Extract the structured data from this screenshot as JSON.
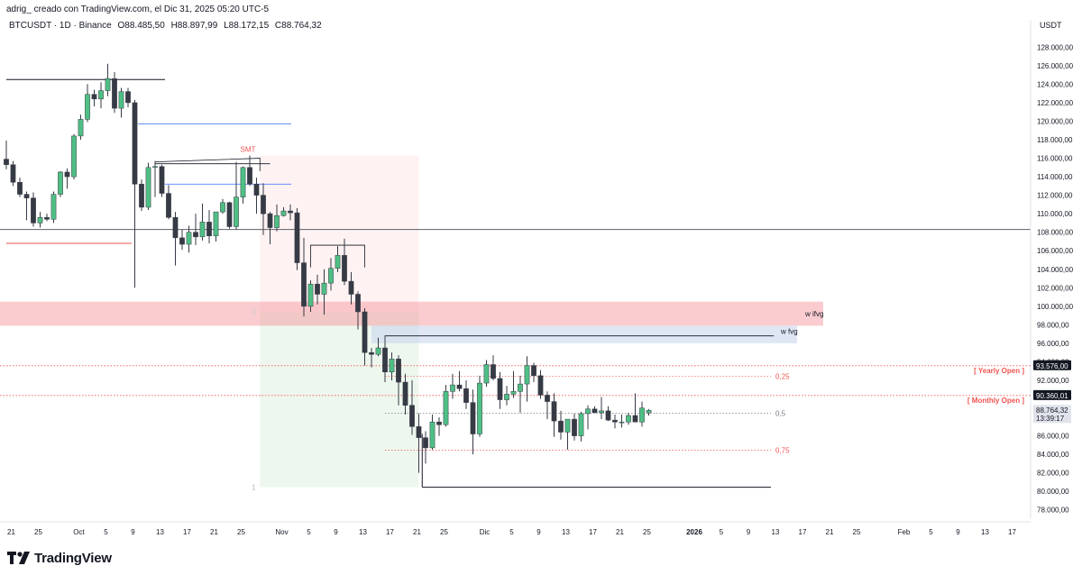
{
  "header": {
    "byline": "adrig_ creado con TradingView.com, el Dic 31, 2025 05:20 UTC-5"
  },
  "legend": {
    "symbol": "BTCUSDT · 1D · Binance",
    "open": "O88.485,50",
    "high": "H88.897,99",
    "low": "L88.172,15",
    "close": "C88.764,32"
  },
  "footer": {
    "brand": "TradingView",
    "logo_icon": "tradingview-logo-icon"
  },
  "chart_data": {
    "type": "candlestick",
    "currency_label": "USDT",
    "ylim": [
      77000,
      129000
    ],
    "y_ticks": [
      {
        "v": 128000,
        "label": "128.000,00"
      },
      {
        "v": 126000,
        "label": "126.000,00"
      },
      {
        "v": 124000,
        "label": "124.000,00"
      },
      {
        "v": 122000,
        "label": "122.000,00"
      },
      {
        "v": 120000,
        "label": "120.000,00"
      },
      {
        "v": 118000,
        "label": "118.000,00"
      },
      {
        "v": 116000,
        "label": "116.000,00"
      },
      {
        "v": 114000,
        "label": "114.000,00"
      },
      {
        "v": 112000,
        "label": "112.000,00"
      },
      {
        "v": 110000,
        "label": "110.000,00"
      },
      {
        "v": 108000,
        "label": "108.000,00"
      },
      {
        "v": 106000,
        "label": "106.000,00"
      },
      {
        "v": 104000,
        "label": "104.000,00"
      },
      {
        "v": 102000,
        "label": "102.000,00"
      },
      {
        "v": 100000,
        "label": "100.000,00"
      },
      {
        "v": 98000,
        "label": "98.000,00"
      },
      {
        "v": 96000,
        "label": "96.000,00"
      },
      {
        "v": 94000,
        "label": "94.000,00"
      },
      {
        "v": 92000,
        "label": "92.000,00"
      },
      {
        "v": 86000,
        "label": "86.000,00"
      },
      {
        "v": 84000,
        "label": "84.000,00"
      },
      {
        "v": 82000,
        "label": "82.000,00"
      },
      {
        "v": 80000,
        "label": "80.000,00"
      },
      {
        "v": 78000,
        "label": "78.000,00"
      }
    ],
    "price_badges": [
      {
        "v": 93576,
        "label": "93.576,00",
        "color": "#131722"
      },
      {
        "v": 90360,
        "label": "90.360,01",
        "color": "#131722"
      },
      {
        "v": 88764.32,
        "label": "88.764,32",
        "sub": "13:39:17",
        "color": "#e0e3eb"
      }
    ],
    "x_ticks": [
      {
        "i": -1,
        "label": "21"
      },
      {
        "i": 3,
        "label": "25"
      },
      {
        "i": 9,
        "label": "Oct"
      },
      {
        "i": 13,
        "label": "5"
      },
      {
        "i": 17,
        "label": "9"
      },
      {
        "i": 21,
        "label": "13"
      },
      {
        "i": 25,
        "label": "17"
      },
      {
        "i": 29,
        "label": "21"
      },
      {
        "i": 33,
        "label": "25"
      },
      {
        "i": 39,
        "label": "Nov"
      },
      {
        "i": 43,
        "label": "5"
      },
      {
        "i": 47,
        "label": "9"
      },
      {
        "i": 51,
        "label": "13"
      },
      {
        "i": 55,
        "label": "17"
      },
      {
        "i": 59,
        "label": "21"
      },
      {
        "i": 63,
        "label": "25"
      },
      {
        "i": 69,
        "label": "Dic"
      },
      {
        "i": 73,
        "label": "5"
      },
      {
        "i": 77,
        "label": "9"
      },
      {
        "i": 81,
        "label": "13"
      },
      {
        "i": 85,
        "label": "17"
      },
      {
        "i": 89,
        "label": "21"
      },
      {
        "i": 93,
        "label": "25"
      },
      {
        "i": 100,
        "label": "2026",
        "bold": true
      },
      {
        "i": 104,
        "label": "5"
      },
      {
        "i": 108,
        "label": "9"
      },
      {
        "i": 112,
        "label": "13"
      },
      {
        "i": 116,
        "label": "17"
      },
      {
        "i": 120,
        "label": "21"
      },
      {
        "i": 124,
        "label": "25"
      },
      {
        "i": 131,
        "label": "Feb"
      },
      {
        "i": 135,
        "label": "5"
      },
      {
        "i": 139,
        "label": "9"
      },
      {
        "i": 143,
        "label": "13"
      },
      {
        "i": 147,
        "label": "17"
      }
    ],
    "candles": [
      [
        115900,
        117900,
        114800,
        115300
      ],
      [
        115300,
        115700,
        113000,
        113400
      ],
      [
        113400,
        113900,
        111800,
        112100
      ],
      [
        112100,
        112400,
        109300,
        111700
      ],
      [
        111700,
        112300,
        108600,
        109000
      ],
      [
        109000,
        110200,
        108500,
        109600
      ],
      [
        109600,
        110000,
        109200,
        109400
      ],
      [
        109400,
        112400,
        109000,
        112100
      ],
      [
        112100,
        114600,
        111800,
        114500
      ],
      [
        114500,
        114900,
        112700,
        114000
      ],
      [
        114000,
        118600,
        113700,
        118400
      ],
      [
        118400,
        120700,
        118000,
        120200
      ],
      [
        120200,
        124000,
        119900,
        122900
      ],
      [
        122900,
        123400,
        121600,
        122400
      ],
      [
        122400,
        124200,
        121400,
        123300
      ],
      [
        123300,
        126200,
        122700,
        124600
      ],
      [
        124600,
        125300,
        120900,
        121400
      ],
      [
        121400,
        123600,
        120400,
        123200
      ],
      [
        123200,
        123600,
        121500,
        122000
      ],
      [
        122000,
        122300,
        102000,
        113200
      ],
      [
        113200,
        113700,
        110300,
        110700
      ],
      [
        110700,
        115500,
        110400,
        115000
      ],
      [
        115000,
        115700,
        111800,
        115100
      ],
      [
        115100,
        115300,
        111800,
        112200
      ],
      [
        112200,
        113100,
        109400,
        109600
      ],
      [
        109600,
        110200,
        104400,
        107400
      ],
      [
        107400,
        108300,
        106100,
        106700
      ],
      [
        106700,
        108700,
        105800,
        108000
      ],
      [
        108000,
        110000,
        106600,
        107500
      ],
      [
        107500,
        111100,
        107100,
        109100
      ],
      [
        109100,
        110400,
        106800,
        107600
      ],
      [
        107600,
        109900,
        107000,
        110200
      ],
      [
        110200,
        111600,
        110000,
        111200
      ],
      [
        111200,
        111300,
        108400,
        108600
      ],
      [
        108600,
        115600,
        108300,
        111800
      ],
      [
        111800,
        115100,
        111100,
        115000
      ],
      [
        115000,
        116300,
        113000,
        113200
      ],
      [
        113200,
        113900,
        110000,
        112000
      ],
      [
        112000,
        113300,
        107700,
        110000
      ],
      [
        110000,
        110200,
        106700,
        108500
      ],
      [
        108500,
        111000,
        108100,
        109800
      ],
      [
        109800,
        110700,
        109700,
        110300
      ],
      [
        110300,
        111000,
        109300,
        110100
      ],
      [
        110100,
        110600,
        103900,
        104700
      ],
      [
        104700,
        107400,
        98900,
        100000
      ],
      [
        100000,
        102800,
        99400,
        102400
      ],
      [
        102400,
        103400,
        100200,
        101300
      ],
      [
        101300,
        104000,
        99100,
        102500
      ],
      [
        102500,
        105200,
        101700,
        104100
      ],
      [
        104100,
        106500,
        103700,
        105500
      ],
      [
        105500,
        107300,
        102300,
        102700
      ],
      [
        102700,
        103700,
        100200,
        101300
      ],
      [
        101300,
        101600,
        97500,
        99400
      ],
      [
        99400,
        99800,
        93600,
        95000
      ],
      [
        95000,
        95500,
        93400,
        94800
      ],
      [
        94800,
        96600,
        94600,
        95500
      ],
      [
        95500,
        96000,
        91800,
        92900
      ],
      [
        92900,
        95000,
        92000,
        94300
      ],
      [
        94300,
        94700,
        89300,
        91800
      ],
      [
        91800,
        92700,
        88300,
        89300
      ],
      [
        89300,
        92000,
        86100,
        87000
      ],
      [
        87000,
        88400,
        82000,
        85800
      ],
      [
        85800,
        86500,
        83000,
        84700
      ],
      [
        84700,
        88300,
        84500,
        87500
      ],
      [
        87500,
        88000,
        86000,
        87200
      ],
      [
        87200,
        91500,
        87000,
        90800
      ],
      [
        90800,
        92700,
        90000,
        91500
      ],
      [
        91500,
        93000,
        90800,
        91100
      ],
      [
        91100,
        92000,
        88900,
        89600
      ],
      [
        89600,
        91000,
        84000,
        86200
      ],
      [
        86200,
        92500,
        85900,
        91700
      ],
      [
        91700,
        94200,
        91300,
        93700
      ],
      [
        93700,
        94700,
        92000,
        92200
      ],
      [
        92200,
        92900,
        88900,
        89900
      ],
      [
        89900,
        91400,
        89300,
        90500
      ],
      [
        90500,
        93000,
        90100,
        90800
      ],
      [
        90800,
        92500,
        88500,
        91600
      ],
      [
        91600,
        94600,
        89700,
        93600
      ],
      [
        93600,
        93900,
        91800,
        92500
      ],
      [
        92500,
        93100,
        90000,
        90400
      ],
      [
        90400,
        90800,
        87800,
        89700
      ],
      [
        89700,
        90600,
        85900,
        87600
      ],
      [
        87600,
        88700,
        85600,
        86400
      ],
      [
        86400,
        87800,
        84500,
        87800
      ],
      [
        87800,
        88400,
        85500,
        86000
      ],
      [
        86000,
        88600,
        85400,
        88400
      ],
      [
        88400,
        89300,
        86700,
        88900
      ],
      [
        88900,
        89200,
        88500,
        88500
      ],
      [
        88500,
        90200,
        87800,
        88700
      ],
      [
        88700,
        89200,
        87600,
        87700
      ],
      [
        87700,
        88300,
        86800,
        87500
      ],
      [
        87500,
        88300,
        86900,
        87500
      ],
      [
        87500,
        88500,
        87200,
        88200
      ],
      [
        88200,
        90600,
        87500,
        87500
      ],
      [
        87500,
        89700,
        87000,
        89000
      ],
      [
        88485.5,
        88897.99,
        88172.15,
        88764.32
      ]
    ],
    "annotations": {
      "smt_label": "SMT",
      "w_ifvg_label": "w ifvg",
      "w_fvg_label": "w fvg",
      "yearly_open_label": "[ Yearly Open ]",
      "monthly_open_label": "[ Monthly Open ]",
      "fib_labels": [
        {
          "v": 92430,
          "label": "0,25",
          "color": "#ef5350"
        },
        {
          "v": 88440,
          "label": "0,5",
          "color": "#787b86"
        },
        {
          "v": 84450,
          "label": "0,75",
          "color": "#ef5350"
        },
        {
          "v": 80450,
          "label": "1",
          "color": "#b2b5be"
        },
        {
          "v": 99400,
          "label": "0",
          "color": "#c6c8cc"
        }
      ],
      "yearly_open": 93576,
      "monthly_open": 90360,
      "level_108k": 108300,
      "red_zone": [
        97900,
        100500
      ],
      "blue_zone": [
        96000,
        97900
      ],
      "smt_high": 116300
    }
  }
}
